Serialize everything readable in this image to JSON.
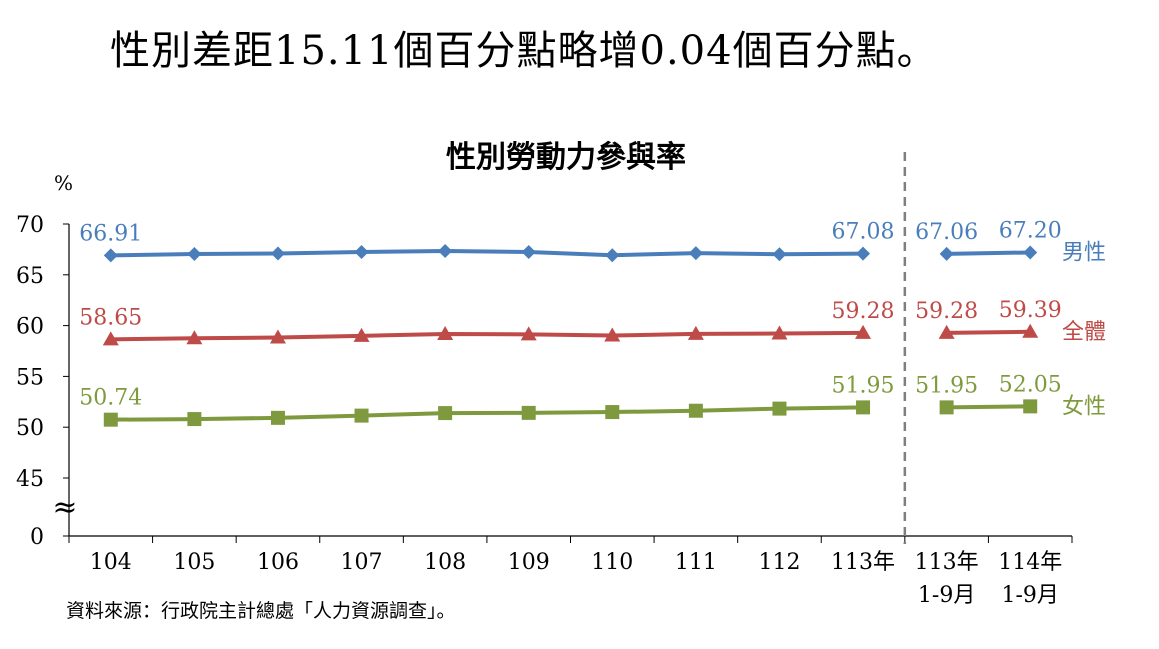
{
  "headline": "性別差距15.11個百分點略增0.04個百分點。",
  "source": "資料來源：行政院主計總處「人力資源調查」。",
  "chart_data": {
    "type": "line",
    "title": "性別勞動力參與率",
    "ylabel": "%",
    "ylim": [
      45,
      70
    ],
    "yticks": [
      "70",
      "65",
      "60",
      "55",
      "50",
      "45",
      "0"
    ],
    "axis_break": "≈",
    "categories": [
      [
        "104"
      ],
      [
        "105"
      ],
      [
        "106"
      ],
      [
        "107"
      ],
      [
        "108"
      ],
      [
        "109"
      ],
      [
        "110"
      ],
      [
        "111"
      ],
      [
        "112"
      ],
      [
        "113年"
      ],
      [
        "113年",
        "1-9月"
      ],
      [
        "114年",
        "1-9月"
      ]
    ],
    "grid": false,
    "series": [
      {
        "name": "男性",
        "color": "#4A7EBB",
        "marker": "diamond",
        "values": [
          66.91,
          67.05,
          67.1,
          67.24,
          67.34,
          67.24,
          66.93,
          67.13,
          67.02,
          67.08,
          67.06,
          67.2
        ],
        "labels": {
          "0": "66.91",
          "9": "67.08",
          "10": "67.06",
          "11": "67.20"
        }
      },
      {
        "name": "全體",
        "color": "#BE4B48",
        "marker": "triangle",
        "values": [
          58.65,
          58.75,
          58.83,
          58.99,
          59.17,
          59.14,
          59.02,
          59.18,
          59.22,
          59.28,
          59.28,
          59.39
        ],
        "labels": {
          "0": "58.65",
          "9": "59.28",
          "10": "59.28",
          "11": "59.39"
        }
      },
      {
        "name": "女性",
        "color": "#7F9A3E",
        "marker": "square",
        "values": [
          50.74,
          50.8,
          50.92,
          51.14,
          51.39,
          51.41,
          51.49,
          51.62,
          51.83,
          51.95,
          51.95,
          52.05
        ],
        "labels": {
          "0": "50.74",
          "9": "51.95",
          "10": "51.95",
          "11": "52.05"
        }
      }
    ],
    "segments": [
      [
        0,
        9
      ],
      [
        10,
        11
      ]
    ]
  }
}
